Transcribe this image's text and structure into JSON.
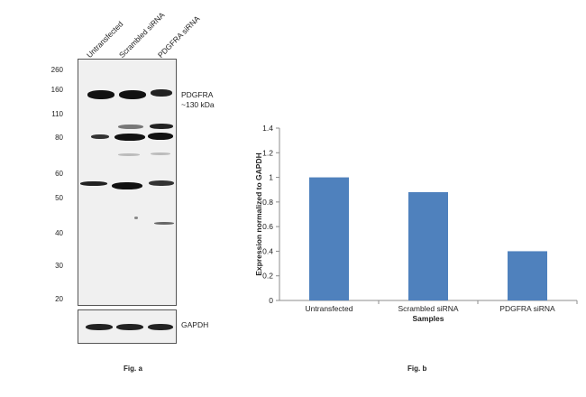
{
  "fig_a": {
    "caption": "Fig. a",
    "lanes": [
      "Untransfected",
      "Scrambled siRNA",
      "PDGFRA siRNA"
    ],
    "mw_markers": [
      "260",
      "160",
      "110",
      "80",
      "60",
      "50",
      "40",
      "30",
      "20"
    ],
    "target_label": "PDGFRA",
    "target_size": "~130 kDa",
    "loading_control": "GAPDH"
  },
  "fig_b": {
    "caption": "Fig. b"
  },
  "chart_data": {
    "type": "bar",
    "categories": [
      "Untransfected",
      "Scrambled siRNA",
      "PDGFRA siRNA"
    ],
    "values": [
      1.0,
      0.88,
      0.4
    ],
    "title": "",
    "xlabel": "Samples",
    "ylabel": "Expression normalized to GAPDH",
    "ylim": [
      0,
      1.4
    ],
    "yticks": [
      "0",
      "0.2",
      "0.4",
      "0.6",
      "0.8",
      "1",
      "1.2",
      "1.4"
    ],
    "bar_color": "#4f81bd",
    "grid": false,
    "legend": "none"
  }
}
